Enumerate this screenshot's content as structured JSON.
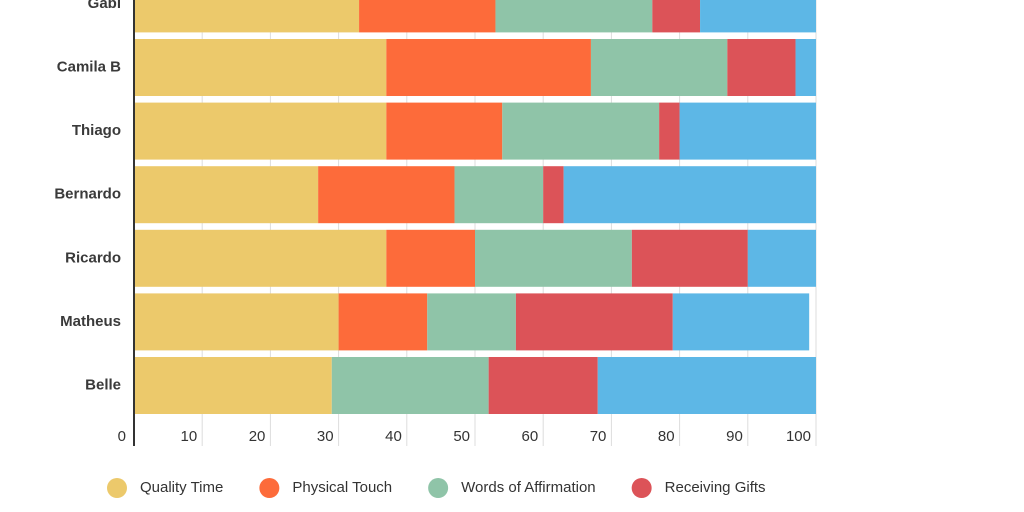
{
  "chart_data": {
    "type": "stacked-bar-horizontal",
    "categories": [
      "Gabi",
      "Camila B",
      "Thiago",
      "Bernardo",
      "Ricardo",
      "Matheus",
      "Belle"
    ],
    "series": [
      {
        "name": "Quality Time",
        "color": "#ecc96b",
        "values": [
          33,
          37,
          37,
          27,
          37,
          30,
          29
        ]
      },
      {
        "name": "Physical Touch",
        "color": "#fd6b3a",
        "values": [
          20,
          30,
          17,
          20,
          13,
          13,
          0
        ]
      },
      {
        "name": "Words of Affirmation",
        "color": "#8fc4a8",
        "values": [
          23,
          20,
          23,
          13,
          23,
          13,
          23
        ]
      },
      {
        "name": "Receiving Gifts",
        "color": "#dc5358",
        "values": [
          7,
          10,
          3,
          3,
          17,
          23,
          16
        ]
      },
      {
        "color": "#5db7e6",
        "values": [
          17,
          3,
          20,
          37,
          10,
          20,
          32
        ]
      }
    ],
    "xlim": [
      0,
      100
    ],
    "xticks": [
      0,
      10,
      20,
      30,
      40,
      50,
      60,
      70,
      80,
      90,
      100
    ],
    "grid": true
  }
}
